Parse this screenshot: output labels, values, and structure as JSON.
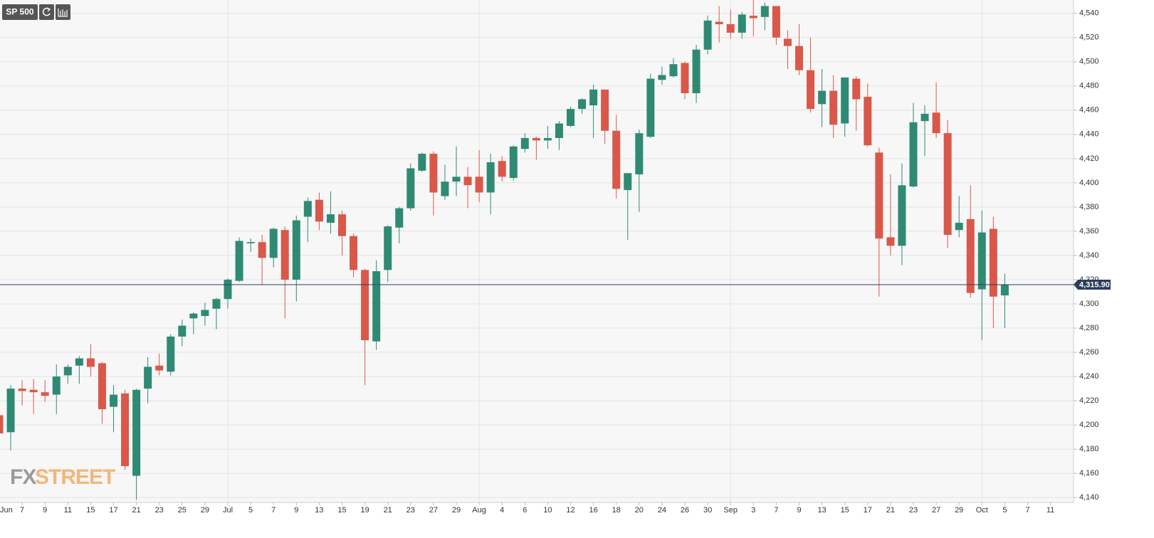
{
  "chart_data": {
    "type": "candlestick",
    "title": "SP 500",
    "categories": [
      "Jun",
      null,
      "7",
      null,
      "9",
      null,
      "11",
      null,
      "15",
      null,
      "17",
      null,
      "21",
      null,
      "23",
      null,
      "25",
      null,
      "29",
      null,
      "Jul",
      null,
      "5",
      null,
      "7",
      null,
      "9",
      null,
      "13",
      null,
      "15",
      null,
      "19",
      null,
      "21",
      null,
      "23",
      null,
      "27",
      null,
      "29",
      null,
      "Aug",
      null,
      "4",
      null,
      "6",
      null,
      "10",
      null,
      "12",
      null,
      "16",
      null,
      "18",
      null,
      "20",
      null,
      "24",
      null,
      "26",
      null,
      "30",
      null,
      "Sep",
      null,
      "3",
      null,
      "7",
      null,
      "9",
      null,
      "13",
      null,
      "15",
      null,
      "17",
      null,
      "21",
      null,
      "23",
      null,
      "27",
      null,
      "29",
      null,
      "Oct",
      null,
      "5",
      null,
      "7",
      null,
      "11"
    ],
    "open": [
      4208,
      4194,
      4230,
      4229,
      4227,
      4225,
      4241,
      4249,
      4255,
      4251,
      4215,
      4226,
      4158,
      4230,
      4249,
      4244,
      4273,
      4288,
      4290,
      4296,
      4304,
      4319,
      4350,
      4351,
      4338,
      4361,
      4320,
      4372,
      4386,
      4367,
      4374,
      4356,
      4328,
      4269,
      4328,
      4363,
      4379,
      4410,
      4424,
      4389,
      4401,
      4405,
      4405,
      4392,
      4418,
      4404,
      4428,
      4437,
      4435,
      4437,
      4447,
      4461,
      4464,
      4477,
      4443,
      4394,
      4407,
      4438,
      4485,
      4488,
      4499,
      4474,
      4510,
      4533,
      4531,
      4524,
      4538,
      4537,
      4546,
      4519,
      4513,
      4493,
      4465,
      4476,
      4449,
      4486,
      4471,
      4425,
      4355,
      4348,
      4397,
      4451,
      4458,
      4441,
      4361,
      4370,
      4312,
      4362,
      4307,
      null,
      null,
      null,
      null
    ],
    "high": [
      4212,
      4233,
      4237,
      4238,
      4237,
      4250,
      4250,
      4257,
      4267,
      4252,
      4233,
      4229,
      4230,
      4256,
      4259,
      4275,
      4287,
      4293,
      4301,
      4305,
      4321,
      4355,
      4354,
      4357,
      4363,
      4364,
      4373,
      4388,
      4392,
      4393,
      4377,
      4358,
      4329,
      4336,
      4365,
      4380,
      4416,
      4425,
      4426,
      4415,
      4430,
      4413,
      4427,
      4424,
      4422,
      4431,
      4441,
      4438,
      4447,
      4451,
      4463,
      4470,
      4481,
      4477,
      4456,
      4408,
      4444,
      4490,
      4496,
      4503,
      4500,
      4514,
      4538,
      4546,
      4543,
      4541,
      4551,
      4549,
      4546,
      4526,
      4531,
      4520,
      4494,
      4489,
      4487,
      4488,
      4482,
      4429,
      4407,
      4416,
      4466,
      4464,
      4483,
      4452,
      4389,
      4398,
      4377,
      4372,
      4325,
      null,
      null,
      null,
      null
    ],
    "low": [
      4192,
      4179,
      4216,
      4209,
      4219,
      4209,
      4234,
      4234,
      4240,
      4201,
      4194,
      4163,
      4138,
      4218,
      4241,
      4241,
      4265,
      4275,
      4282,
      4279,
      4296,
      4318,
      4343,
      4316,
      4330,
      4288,
      4302,
      4351,
      4361,
      4358,
      4340,
      4322,
      4233,
      4262,
      4318,
      4350,
      4377,
      4409,
      4373,
      4386,
      4389,
      4379,
      4384,
      4374,
      4401,
      4402,
      4425,
      4419,
      4428,
      4427,
      4446,
      4457,
      4437,
      4432,
      4387,
      4353,
      4376,
      4437,
      4481,
      4487,
      4469,
      4466,
      4506,
      4516,
      4519,
      4519,
      4521,
      4526,
      4514,
      4494,
      4489,
      4458,
      4446,
      4437,
      4438,
      4443,
      4430,
      4306,
      4340,
      4332,
      4396,
      4422,
      4437,
      4346,
      4355,
      4305,
      4270,
      4280,
      4280,
      null,
      null,
      null,
      null
    ],
    "close": [
      4193,
      4230,
      4228,
      4227,
      4224,
      4240,
      4248,
      4255,
      4248,
      4213,
      4225,
      4166,
      4229,
      4248,
      4245,
      4273,
      4282,
      4292,
      4295,
      4304,
      4320,
      4352,
      4351,
      4338,
      4362,
      4320,
      4369,
      4385,
      4368,
      4374,
      4356,
      4328,
      4270,
      4327,
      4364,
      4379,
      4412,
      4424,
      4392,
      4401,
      4405,
      4398,
      4392,
      4417,
      4405,
      4430,
      4437,
      4435,
      4437,
      4449,
      4461,
      4469,
      4477,
      4443,
      4395,
      4408,
      4441,
      4486,
      4489,
      4498,
      4474,
      4510,
      4534,
      4531,
      4524,
      4539,
      4536,
      4546,
      4520,
      4513,
      4493,
      4461,
      4476,
      4448,
      4487,
      4469,
      4431,
      4354,
      4348,
      4398,
      4450,
      4457,
      4441,
      4357,
      4367,
      4309,
      4359,
      4306,
      4315.9,
      null,
      null,
      null,
      null
    ],
    "up_color": "#2f8a74",
    "down_color": "#d9584a",
    "ylim": [
      4136,
      4551
    ],
    "yticks": [
      {
        "value": 4140,
        "label": "4,140"
      },
      {
        "value": 4160,
        "label": "4,160"
      },
      {
        "value": 4180,
        "label": "4,180"
      },
      {
        "value": 4200,
        "label": "4,200"
      },
      {
        "value": 4220,
        "label": "4,220"
      },
      {
        "value": 4240,
        "label": "4,240"
      },
      {
        "value": 4260,
        "label": "4,260"
      },
      {
        "value": 4280,
        "label": "4,280"
      },
      {
        "value": 4300,
        "label": "4,300"
      },
      {
        "value": 4320,
        "label": "4,320"
      },
      {
        "value": 4340,
        "label": "4,340"
      },
      {
        "value": 4360,
        "label": "4,360"
      },
      {
        "value": 4380,
        "label": "4,380"
      },
      {
        "value": 4400,
        "label": "4,400"
      },
      {
        "value": 4420,
        "label": "4,420"
      },
      {
        "value": 4440,
        "label": "4,440"
      },
      {
        "value": 4460,
        "label": "4,460"
      },
      {
        "value": 4480,
        "label": "4,480"
      },
      {
        "value": 4500,
        "label": "4,500"
      },
      {
        "value": 4520,
        "label": "4,520"
      },
      {
        "value": 4540,
        "label": "4,540"
      }
    ],
    "last_price": {
      "value": 4315.9,
      "label": "4,315.90"
    },
    "grid": true,
    "watermark": [
      "FX",
      "STREET"
    ]
  }
}
